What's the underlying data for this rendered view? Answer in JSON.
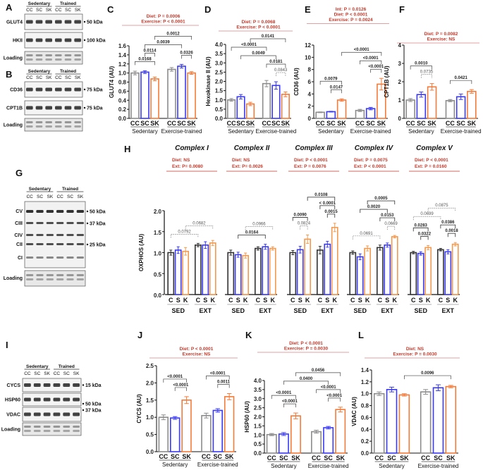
{
  "colors": {
    "CC": "#8c8c8c",
    "SC": "#3a3af5",
    "SK": "#f47b3a",
    "stats": "#c0392b",
    "H_C": "#333333",
    "H_K": "#f29a50"
  },
  "blots": [
    {
      "panel": "A",
      "groups": [
        "Sedentary",
        "Trained"
      ],
      "lanes": [
        "CC",
        "SC",
        "SK",
        "CC",
        "SC",
        "SK"
      ],
      "rows": [
        {
          "name": "GLUT4",
          "marker": "50 kDa"
        },
        {
          "name": "HKII",
          "marker": "100 kDa"
        },
        {
          "name": "Loading"
        }
      ]
    },
    {
      "panel": "B",
      "groups": [
        "Sedentary",
        "Trained"
      ],
      "lanes": [
        "CC",
        "SC",
        "SK",
        "CC",
        "SC",
        "SK"
      ],
      "rows": [
        {
          "name": "CD36",
          "marker": "75 kDa"
        },
        {
          "name": "CPT1B",
          "marker": "75 kDa"
        },
        {
          "name": "Loading"
        }
      ]
    },
    {
      "panel": "G",
      "groups": [
        "Sedentary",
        "Trained"
      ],
      "lanes": [
        "CC",
        "SC",
        "SK",
        "CC",
        "SC",
        "SK"
      ],
      "rows": [
        {
          "name": "CV",
          "marker": "50 kDa"
        },
        {
          "name": "CIII",
          "marker": "37 kDa"
        },
        {
          "name": "CIV"
        },
        {
          "name": "CII",
          "marker": "25 kDa"
        },
        {
          "name": "CI"
        },
        {
          "name": "Loading"
        }
      ]
    },
    {
      "panel": "I",
      "groups": [
        "Sedentary",
        "Trained"
      ],
      "lanes": [
        "CC",
        "SC",
        "SK",
        "CC",
        "SC",
        "SK"
      ],
      "rows": [
        {
          "name": "CYCS",
          "marker": "15 kDa"
        },
        {
          "name": "HSP60",
          "marker": "50 kDa"
        },
        {
          "name": "VDAC",
          "marker": "37 kDa"
        },
        {
          "name": "Loading"
        }
      ]
    }
  ],
  "chart_data": [
    {
      "panel": "C",
      "type": "bar",
      "ylabel": "GLUT4 (AU)",
      "ylim": [
        0,
        1.6
      ],
      "ticks": [
        "0.0",
        "0.2",
        "0.4",
        "0.6",
        "0.8",
        "1.0",
        "1.2",
        "1.4",
        "1.6"
      ],
      "categories": [
        "CC",
        "SC",
        "SK",
        "CC",
        "SC",
        "SK"
      ],
      "groups": [
        "Sedentary",
        "Exercise-trained"
      ],
      "means": [
        1.0,
        1.02,
        0.87,
        1.08,
        1.15,
        1.0
      ],
      "sem": [
        0.04,
        0.03,
        0.04,
        0.04,
        0.04,
        0.03
      ],
      "stats": [
        "Diet: P = 0.0006",
        "Exercise: P < 0.0001"
      ],
      "comparisons": [
        {
          "a": 0,
          "b": 2,
          "p": "0.0168"
        },
        {
          "a": 1,
          "b": 2,
          "p": "0.0114"
        },
        {
          "a": 4,
          "b": 5,
          "p": "0.0326"
        },
        {
          "a": 1,
          "b": 4,
          "p": "0.0039"
        },
        {
          "a": 2,
          "b": 5,
          "p": "0.0012"
        }
      ]
    },
    {
      "panel": "D",
      "type": "bar",
      "ylabel": "Hexokinase II (AU)",
      "ylim": [
        0,
        4
      ],
      "ticks": [
        "0.0",
        "0.5",
        "1.0",
        "1.5",
        "2.0",
        "2.5",
        "3.0",
        "3.5",
        "4.0"
      ],
      "categories": [
        "CC",
        "SC",
        "SK",
        "CC",
        "SC",
        "SK"
      ],
      "groups": [
        "Sedentary",
        "Exercise-trained"
      ],
      "means": [
        1.0,
        1.17,
        0.78,
        1.88,
        1.78,
        1.3
      ],
      "sem": [
        0.07,
        0.12,
        0.09,
        0.17,
        0.2,
        0.13
      ],
      "stats": [
        "Diet: P = 0.0068",
        "Exercise: P < 0.0001"
      ],
      "comparisons": [
        {
          "a": 4,
          "b": 5,
          "p": "0.0843",
          "dotted": true
        },
        {
          "a": 3,
          "b": 5,
          "p": "0.0181"
        },
        {
          "a": 1,
          "b": 4,
          "p": "0.0049"
        },
        {
          "a": 0,
          "b": 3,
          "p": "<0.0001"
        },
        {
          "a": 2,
          "b": 5,
          "p": "0.0141"
        }
      ]
    },
    {
      "panel": "E",
      "type": "bar",
      "ylabel": "CD36 (AU)",
      "ylim": [
        0,
        12
      ],
      "ticks": [
        "0",
        "2",
        "4",
        "6",
        "8",
        "10",
        "12"
      ],
      "categories": [
        "CC",
        "SC",
        "SK",
        "CC",
        "SC",
        "SK"
      ],
      "groups": [
        "Sedentary",
        "Exercise-trained"
      ],
      "means": [
        1.0,
        1.1,
        3.0,
        1.3,
        1.6,
        5.6
      ],
      "sem": [
        0.06,
        0.06,
        0.2,
        0.18,
        0.2,
        0.95
      ],
      "stats": [
        "Int: P = 0.0126",
        "Diet: P < 0.0001",
        "Exercise: P = 0.0024"
      ],
      "comparisons": [
        {
          "a": 1,
          "b": 2,
          "p": "0.0147"
        },
        {
          "a": 0,
          "b": 2,
          "p": "0.0079"
        },
        {
          "a": 4,
          "b": 5,
          "p": "<0.0001"
        },
        {
          "a": 3,
          "b": 5,
          "p": "<0.0001"
        },
        {
          "a": 2,
          "b": 5,
          "p": "<0.0001"
        }
      ]
    },
    {
      "panel": "F",
      "type": "bar",
      "ylabel": "CPT1B (AU)",
      "ylim": [
        0,
        4
      ],
      "ticks": [
        "0",
        "1",
        "2",
        "3",
        "4"
      ],
      "categories": [
        "CC",
        "SC",
        "SK",
        "CC",
        "SC",
        "SK"
      ],
      "groups": [
        "Sedentary",
        "Exercise-trained"
      ],
      "means": [
        1.0,
        1.3,
        1.72,
        0.97,
        1.18,
        1.47
      ],
      "sem": [
        0.08,
        0.14,
        0.18,
        0.06,
        0.15,
        0.1
      ],
      "stats": [
        "Diet: P = 0.0082",
        "Exercise: NS"
      ],
      "comparisons": [
        {
          "a": 1,
          "b": 2,
          "p": "0.0735",
          "dotted": true
        },
        {
          "a": 0,
          "b": 2,
          "p": "0.0010"
        },
        {
          "a": 3,
          "b": 5,
          "p": "0.0421"
        }
      ]
    },
    {
      "panel": "H",
      "type": "bar",
      "ylabel": "OXPHOS (AU)",
      "ylim": [
        0,
        2
      ],
      "ticks": [
        "0.0",
        "0.5",
        "1.0",
        "1.5",
        "2.0"
      ],
      "categories": [
        "C",
        "S",
        "K",
        "C",
        "S",
        "K"
      ],
      "groups": [
        "SED",
        "EXT"
      ],
      "complexes": [
        {
          "title": "Complex I",
          "stats": [
            "Diet: NS",
            "Ext: P= 0.0080"
          ],
          "means": [
            1.0,
            1.06,
            1.03,
            1.18,
            1.18,
            1.23
          ],
          "sem": [
            0.06,
            0.08,
            0.09,
            0.04,
            0.08,
            0.06
          ],
          "comparisons": [
            {
              "a": 0,
              "b": 3,
              "p": "0.0792",
              "dotted": true
            },
            {
              "a": 2,
              "b": 5,
              "p": "0.0682",
              "dotted": true
            }
          ]
        },
        {
          "title": "Complex II",
          "stats": [
            "Diet: NS",
            "Ext: P= 0.0026"
          ],
          "means": [
            1.0,
            0.95,
            0.93,
            1.1,
            1.14,
            1.1
          ],
          "sem": [
            0.06,
            0.06,
            0.06,
            0.04,
            0.06,
            0.04
          ],
          "comparisons": [
            {
              "a": 1,
              "b": 4,
              "p": "0.0164"
            },
            {
              "a": 2,
              "b": 5,
              "p": "0.0966",
              "dotted": true
            }
          ]
        },
        {
          "title": "Complex III",
          "stats": [
            "Diet: P < 0.0001",
            "Ext: P = 0.0076"
          ],
          "means": [
            1.0,
            1.07,
            1.32,
            1.06,
            1.2,
            1.6
          ],
          "sem": [
            0.05,
            0.08,
            0.1,
            0.09,
            0.07,
            0.1
          ],
          "comparisons": [
            {
              "a": 4,
              "b": 5,
              "p": "0.0015"
            },
            {
              "a": 1,
              "b": 2,
              "p": "0.0824",
              "dotted": true
            },
            {
              "a": 3,
              "b": 5,
              "p": "< 0.0001"
            },
            {
              "a": 0,
              "b": 2,
              "p": "0.0090"
            },
            {
              "a": 2,
              "b": 5,
              "p": "0.0108"
            }
          ]
        },
        {
          "title": "Complex IV",
          "stats": [
            "Diet: P = 0.0075",
            "Ext: P < 0.0001"
          ],
          "means": [
            1.0,
            0.9,
            1.1,
            1.12,
            1.18,
            1.38
          ],
          "sem": [
            0.04,
            0.07,
            0.06,
            0.06,
            0.05,
            0.03
          ],
          "comparisons": [
            {
              "a": 4,
              "b": 5,
              "p": "0.0669",
              "dotted": true
            },
            {
              "a": 0,
              "b": 3,
              "p": "0.0691",
              "dotted": true
            },
            {
              "a": 3,
              "b": 5,
              "p": "0.0153"
            },
            {
              "a": 1,
              "b": 4,
              "p": "0.0020"
            },
            {
              "a": 2,
              "b": 5,
              "p": "0.0005"
            }
          ]
        },
        {
          "title": "Complex V",
          "stats": [
            "Diet: P < 0.0001",
            "Ext: P = 0.0160"
          ],
          "means": [
            1.0,
            0.98,
            1.12,
            1.07,
            1.02,
            1.2
          ],
          "sem": [
            0.03,
            0.04,
            0.05,
            0.03,
            0.05,
            0.04
          ],
          "comparisons": [
            {
              "a": 1,
              "b": 2,
              "p": "0.0322"
            },
            {
              "a": 4,
              "b": 5,
              "p": "0.0018"
            },
            {
              "a": 0,
              "b": 2,
              "p": "0.0283"
            },
            {
              "a": 3,
              "b": 5,
              "p": "0.0386"
            },
            {
              "a": 0,
              "b": 3,
              "p": "0.0699",
              "dotted": true
            },
            {
              "a": 2,
              "b": 5,
              "p": "0.0875",
              "dotted": true
            }
          ]
        }
      ]
    },
    {
      "panel": "J",
      "type": "bar",
      "ylabel": "CYCS (AU)",
      "ylim": [
        0,
        2.5
      ],
      "ticks": [
        "0.0",
        "0.5",
        "1.0",
        "1.5",
        "2.0",
        "2.5"
      ],
      "categories": [
        "CC",
        "SC",
        "SK",
        "CC",
        "SC",
        "SK"
      ],
      "groups": [
        "Sedentary",
        "Exercise-trained"
      ],
      "means": [
        1.0,
        0.98,
        1.5,
        1.05,
        1.2,
        1.6
      ],
      "sem": [
        0.07,
        0.04,
        0.1,
        0.07,
        0.05,
        0.09
      ],
      "stats": [
        "Diet: P < 0.0001",
        "Exercise: NS"
      ],
      "comparisons": [
        {
          "a": 1,
          "b": 2,
          "p": "<0.0001"
        },
        {
          "a": 0,
          "b": 2,
          "p": "<0.0001"
        },
        {
          "a": 4,
          "b": 5,
          "p": "0.0011"
        },
        {
          "a": 3,
          "b": 5,
          "p": "<0.0001"
        }
      ]
    },
    {
      "panel": "K",
      "type": "bar",
      "ylabel": "HSP60 (AU)",
      "ylim": [
        0,
        4
      ],
      "ticks": [
        "0.0",
        "0.5",
        "1.0",
        "1.5",
        "2.0",
        "2.5",
        "3.0",
        "3.5",
        "4.0"
      ],
      "categories": [
        "CC",
        "SC",
        "SK",
        "CC",
        "SC",
        "SK"
      ],
      "groups": [
        "Sedentary",
        "Exercise-trained"
      ],
      "means": [
        1.02,
        1.05,
        2.05,
        1.18,
        1.4,
        2.4
      ],
      "sem": [
        0.06,
        0.08,
        0.16,
        0.08,
        0.07,
        0.13
      ],
      "stats": [
        "Diet: P < 0.0001",
        "Exercise: P = 0.0030"
      ],
      "comparisons": [
        {
          "a": 1,
          "b": 2,
          "p": "<0.0001"
        },
        {
          "a": 0,
          "b": 2,
          "p": "<0.0001"
        },
        {
          "a": 4,
          "b": 5,
          "p": "<0.0001"
        },
        {
          "a": 3,
          "b": 5,
          "p": "<0.0001"
        },
        {
          "a": 1,
          "b": 4,
          "p": "0.0400"
        },
        {
          "a": 2,
          "b": 5,
          "p": "0.0456"
        }
      ]
    },
    {
      "panel": "L",
      "type": "bar",
      "ylabel": "VDAC (AU)",
      "ylim": [
        0,
        1.4
      ],
      "ticks": [
        "0.0",
        "0.2",
        "0.4",
        "0.6",
        "0.8",
        "1.0",
        "1.2",
        "1.4"
      ],
      "categories": [
        "CC",
        "SC",
        "SK",
        "CC",
        "SC",
        "SK"
      ],
      "groups": [
        "Sedentary",
        "Exercise-trained"
      ],
      "means": [
        1.0,
        1.07,
        0.98,
        1.03,
        1.1,
        1.12
      ],
      "sem": [
        0.03,
        0.04,
        0.02,
        0.04,
        0.05,
        0.02
      ],
      "stats": [
        "Diet: NS",
        "Exercise: P = 0.0030"
      ],
      "comparisons": [
        {
          "a": 2,
          "b": 5,
          "p": "0.0096"
        }
      ]
    }
  ]
}
